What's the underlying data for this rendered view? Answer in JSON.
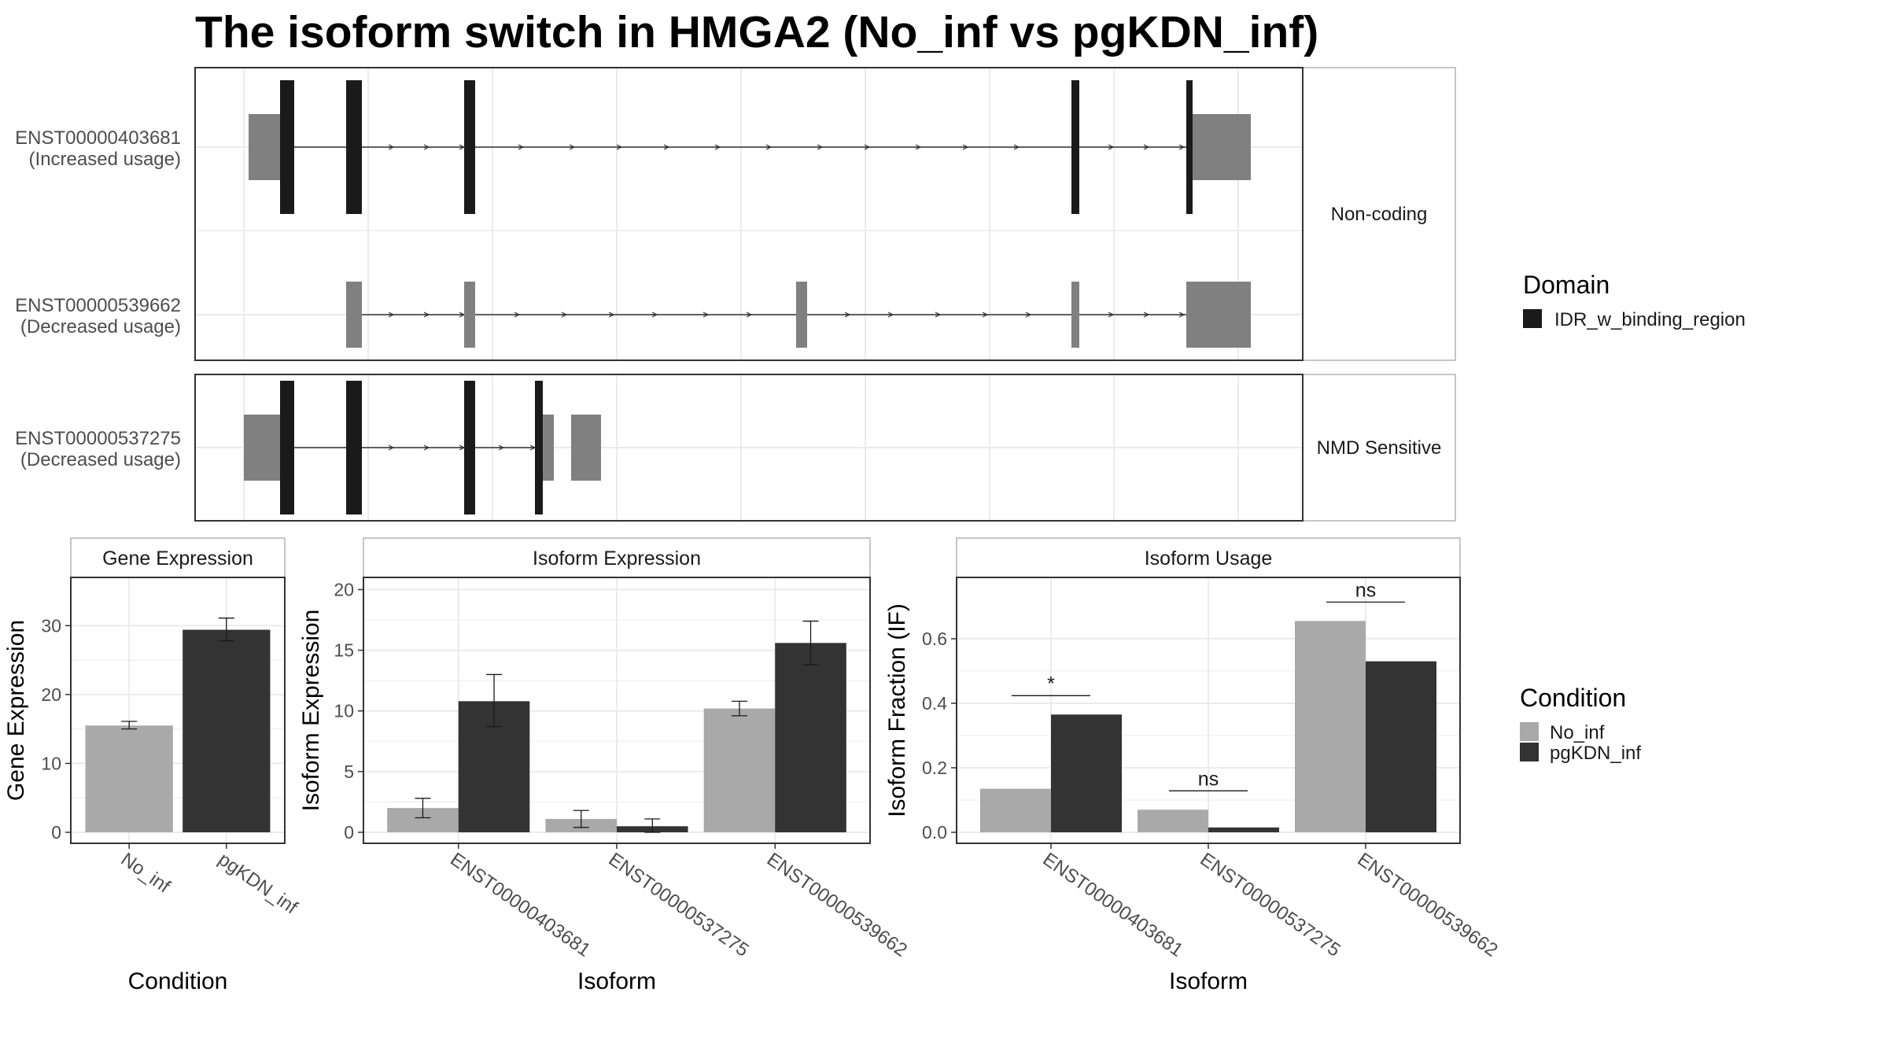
{
  "title": "The isoform switch in HMGA2 (No_inf vs pgKDN_inf)",
  "colors": {
    "no_inf": "#a9a9a9",
    "pgkdn_inf": "#333333",
    "exon_domain": "#1a1a1a",
    "exon_other": "#808080",
    "panel_border": "#333333",
    "strip_border": "#b3b3b3",
    "grid": "#ebebeb"
  },
  "chart_data": [
    {
      "type": "other",
      "name": "transcript-structure",
      "facets": [
        {
          "label": "Non-coding",
          "transcripts": [
            {
              "id": "ENST00000403681",
              "usage": "(Increased usage)"
            },
            {
              "id": "ENST00000539662",
              "usage": "(Decreased usage)"
            }
          ]
        },
        {
          "label": "NMD Sensitive",
          "transcripts": [
            {
              "id": "ENST00000537275",
              "usage": "(Decreased usage)"
            }
          ]
        }
      ],
      "legend": {
        "title": "Domain",
        "items": [
          "IDR_w_binding_region"
        ]
      }
    },
    {
      "type": "bar",
      "name": "gene-expression",
      "strip": "Gene Expression",
      "xlabel": "Condition",
      "ylabel": "Gene Expression",
      "categories": [
        "No_inf",
        "pgKDN_inf"
      ],
      "values": [
        15.5,
        29.4
      ],
      "errors": [
        [
          15.0,
          16.1
        ],
        [
          27.8,
          31.1
        ]
      ],
      "ylim": [
        0,
        37
      ],
      "yticks": [
        0,
        10,
        20,
        30
      ]
    },
    {
      "type": "bar",
      "name": "isoform-expression",
      "strip": "Isoform Expression",
      "xlabel": "Isoform",
      "ylabel": "Isoform Expression",
      "categories": [
        "ENST00000403681",
        "ENST00000537275",
        "ENST00000539662"
      ],
      "series": [
        {
          "name": "No_inf",
          "values": [
            2.0,
            1.1,
            10.2
          ],
          "errors": [
            [
              1.2,
              2.8
            ],
            [
              0.4,
              1.8
            ],
            [
              9.6,
              10.8
            ]
          ]
        },
        {
          "name": "pgKDN_inf",
          "values": [
            10.8,
            0.5,
            15.6
          ],
          "errors": [
            [
              8.7,
              13.0
            ],
            [
              0.0,
              1.1
            ],
            [
              13.8,
              17.4
            ]
          ]
        }
      ],
      "ylim": [
        0,
        21
      ],
      "yticks": [
        0,
        5,
        10,
        15,
        20
      ]
    },
    {
      "type": "bar",
      "name": "isoform-usage",
      "strip": "Isoform Usage",
      "xlabel": "Isoform",
      "ylabel": "Isoform Fraction (IF)",
      "categories": [
        "ENST00000403681",
        "ENST00000537275",
        "ENST00000539662"
      ],
      "series": [
        {
          "name": "No_inf",
          "values": [
            0.135,
            0.07,
            0.655
          ]
        },
        {
          "name": "pgKDN_inf",
          "values": [
            0.365,
            0.015,
            0.53
          ]
        }
      ],
      "significance": [
        "*",
        "ns",
        "ns"
      ],
      "ylim": [
        0,
        0.79
      ],
      "yticks": [
        "0.0",
        "0.2",
        "0.4",
        "0.6"
      ]
    }
  ],
  "condition_legend": {
    "title": "Condition",
    "items": [
      "No_inf",
      "pgKDN_inf"
    ]
  }
}
